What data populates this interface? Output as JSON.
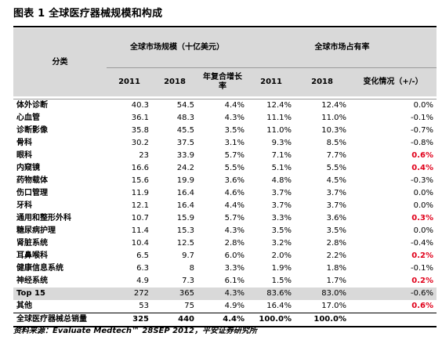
{
  "title": "图表 1 全球医疗器械规模和构成",
  "headers": {
    "category": "分类",
    "group_size": "全球市场规模（十亿美元）",
    "group_share": "全球市场占有率",
    "col_2011": "2011",
    "col_2018": "2018",
    "col_cagr": "年复合增长率",
    "col_share_2011": "2011",
    "col_share_2018": "2018",
    "col_change": "变化情况（+/-）"
  },
  "rows": [
    {
      "name": "体外诊断",
      "v2011": "40.3",
      "v2018": "54.5",
      "cagr": "4.4%",
      "s2011": "12.4%",
      "s2018": "12.4%",
      "chg": "0.0%",
      "red": false
    },
    {
      "name": "心血管",
      "v2011": "36.1",
      "v2018": "48.3",
      "cagr": "4.3%",
      "s2011": "11.1%",
      "s2018": "11.0%",
      "chg": "-0.1%",
      "red": false
    },
    {
      "name": "诊断影像",
      "v2011": "35.8",
      "v2018": "45.5",
      "cagr": "3.5%",
      "s2011": "11.0%",
      "s2018": "10.3%",
      "chg": "-0.7%",
      "red": false
    },
    {
      "name": "骨科",
      "v2011": "30.2",
      "v2018": "37.5",
      "cagr": "3.1%",
      "s2011": "9.3%",
      "s2018": "8.5%",
      "chg": "-0.8%",
      "red": false
    },
    {
      "name": "眼科",
      "v2011": "23",
      "v2018": "33.9",
      "cagr": "5.7%",
      "s2011": "7.1%",
      "s2018": "7.7%",
      "chg": "0.6%",
      "red": true
    },
    {
      "name": "内窥镜",
      "v2011": "16.6",
      "v2018": "24.2",
      "cagr": "5.5%",
      "s2011": "5.1%",
      "s2018": "5.5%",
      "chg": "0.4%",
      "red": true
    },
    {
      "name": "药物载体",
      "v2011": "15.6",
      "v2018": "19.9",
      "cagr": "3.6%",
      "s2011": "4.8%",
      "s2018": "4.5%",
      "chg": "-0.3%",
      "red": false
    },
    {
      "name": "伤口管理",
      "v2011": "11.9",
      "v2018": "16.4",
      "cagr": "4.6%",
      "s2011": "3.7%",
      "s2018": "3.7%",
      "chg": "0.0%",
      "red": false
    },
    {
      "name": "牙科",
      "v2011": "12.1",
      "v2018": "16.4",
      "cagr": "4.4%",
      "s2011": "3.7%",
      "s2018": "3.7%",
      "chg": "0.0%",
      "red": false
    },
    {
      "name": "通用和整形外科",
      "v2011": "10.7",
      "v2018": "15.9",
      "cagr": "5.7%",
      "s2011": "3.3%",
      "s2018": "3.6%",
      "chg": "0.3%",
      "red": true
    },
    {
      "name": "糖尿病护理",
      "v2011": "11.4",
      "v2018": "15.3",
      "cagr": "4.3%",
      "s2011": "3.5%",
      "s2018": "3.5%",
      "chg": "0.0%",
      "red": false
    },
    {
      "name": "肾脏系统",
      "v2011": "10.4",
      "v2018": "12.5",
      "cagr": "2.8%",
      "s2011": "3.2%",
      "s2018": "2.8%",
      "chg": "-0.4%",
      "red": false
    },
    {
      "name": "耳鼻喉科",
      "v2011": "6.5",
      "v2018": "9.7",
      "cagr": "6.0%",
      "s2011": "2.0%",
      "s2018": "2.2%",
      "chg": "0.2%",
      "red": true
    },
    {
      "name": "健康信息系统",
      "v2011": "6.3",
      "v2018": "8",
      "cagr": "3.3%",
      "s2011": "1.9%",
      "s2018": "1.8%",
      "chg": "-0.1%",
      "red": false
    },
    {
      "name": "神经系统",
      "v2011": "4.9",
      "v2018": "7.3",
      "cagr": "6.1%",
      "s2011": "1.5%",
      "s2018": "1.7%",
      "chg": "0.2%",
      "red": true
    }
  ],
  "top15": {
    "name": "Top 15",
    "v2011": "272",
    "v2018": "365",
    "cagr": "4.3%",
    "s2011": "83.6%",
    "s2018": "83.0%",
    "chg": "-0.6%"
  },
  "other": {
    "name": "其他",
    "v2011": "53",
    "v2018": "75",
    "cagr": "4.9%",
    "s2011": "16.4%",
    "s2018": "17.0%",
    "chg": "0.6%"
  },
  "total": {
    "name": "全球医疗器械总销量",
    "v2011": "325",
    "v2018": "440",
    "cagr": "4.4%",
    "s2011": "100.0%",
    "s2018": "100.0%",
    "chg": ""
  },
  "source": "资料来源：Evaluate Medtech™ 28SEP 2012，平安证券研究所",
  "colors": {
    "header_bg": "#d9d9d9",
    "highlight_red": "#e0001a"
  }
}
